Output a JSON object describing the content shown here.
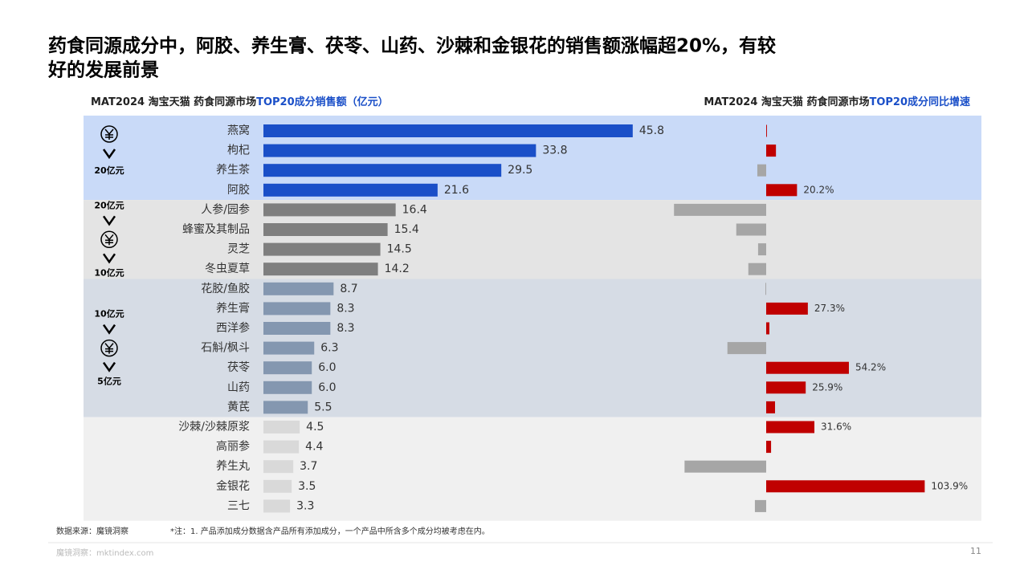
{
  "header": {
    "title_line1": "药食同源成分中，阿胶、养生膏、茯苓、山药、沙棘和金银花的销售额涨幅超20%，有较",
    "title_line2": "好的发展前景"
  },
  "chart_data": [
    {
      "type": "bar",
      "orientation": "horizontal",
      "title_prefix": "MAT2024 淘宝天猫 药食同源市场",
      "title_highlight": "TOP20成分销售额（亿元）",
      "categories": [
        "燕窝",
        "枸杞",
        "养生茶",
        "阿胶",
        "人参/园参",
        "蜂蜜及其制品",
        "灵芝",
        "冬虫夏草",
        "花胶/鱼胶",
        "养生膏",
        "西洋参",
        "石斛/枫斗",
        "茯苓",
        "山药",
        "黄芪",
        "沙棘/沙棘原浆",
        "高丽参",
        "养生丸",
        "金银花",
        "三七"
      ],
      "values": [
        45.8,
        33.8,
        29.5,
        21.6,
        16.4,
        15.4,
        14.5,
        14.2,
        8.7,
        8.3,
        8.3,
        6.3,
        6.0,
        6.0,
        5.5,
        4.5,
        4.4,
        3.7,
        3.5,
        3.3
      ],
      "value_labels": [
        "45.8",
        "33.8",
        "29.5",
        "21.6",
        "16.4",
        "15.4",
        "14.5",
        "14.2",
        "8.7",
        "8.3",
        "8.3",
        "6.3",
        "6.0",
        "6.0",
        "5.5",
        "4.5",
        "4.4",
        "3.7",
        "3.5",
        "3.3"
      ],
      "groups": [
        {
          "rows": 4,
          "bar_color": "#1a4fc8",
          "band_color": "#c9daf8",
          "top_label": null,
          "bottom_label": "20亿元"
        },
        {
          "rows": 4,
          "bar_color": "#7f7f7f",
          "band_color": "#e4e4e4",
          "top_label": "20亿元",
          "bottom_label": "10亿元"
        },
        {
          "rows": 7,
          "bar_color": "#8497b0",
          "band_color": "#d6dce5",
          "top_label": "10亿元",
          "bottom_label": "5亿元"
        },
        {
          "rows": 5,
          "bar_color": "#d9d9d9",
          "band_color": "#f0f0f0",
          "top_label": null,
          "bottom_label": null
        }
      ]
    },
    {
      "type": "diverging-bar",
      "title_prefix": "MAT2024 淘宝天猫 药食同源市场",
      "title_highlight": "TOP20成分同比增速",
      "values": [
        0.5,
        6.4,
        -5.8,
        20.2,
        -60.4,
        -19.6,
        -5.3,
        -11.7,
        -0.5,
        27.3,
        2.1,
        -25.4,
        54.2,
        25.9,
        5.8,
        31.6,
        3.2,
        -53.5,
        103.9,
        -7.4
      ],
      "value_labels": [
        null,
        null,
        null,
        "20.2%",
        null,
        null,
        null,
        null,
        null,
        "27.3%",
        null,
        null,
        "54.2%",
        "25.9%",
        null,
        "31.6%",
        null,
        null,
        "103.9%",
        null
      ],
      "positive_color": "#c00000",
      "negative_color": "#a6a6a6"
    }
  ],
  "footer": {
    "source": "数据来源：魔镜洞察",
    "note": "*注：1. 产品添加成分数据含产品所有添加成分，一个产品中所含多个成分均被考虑在内。",
    "site": "魔镜洞察：mktindex.com",
    "page": "11"
  }
}
